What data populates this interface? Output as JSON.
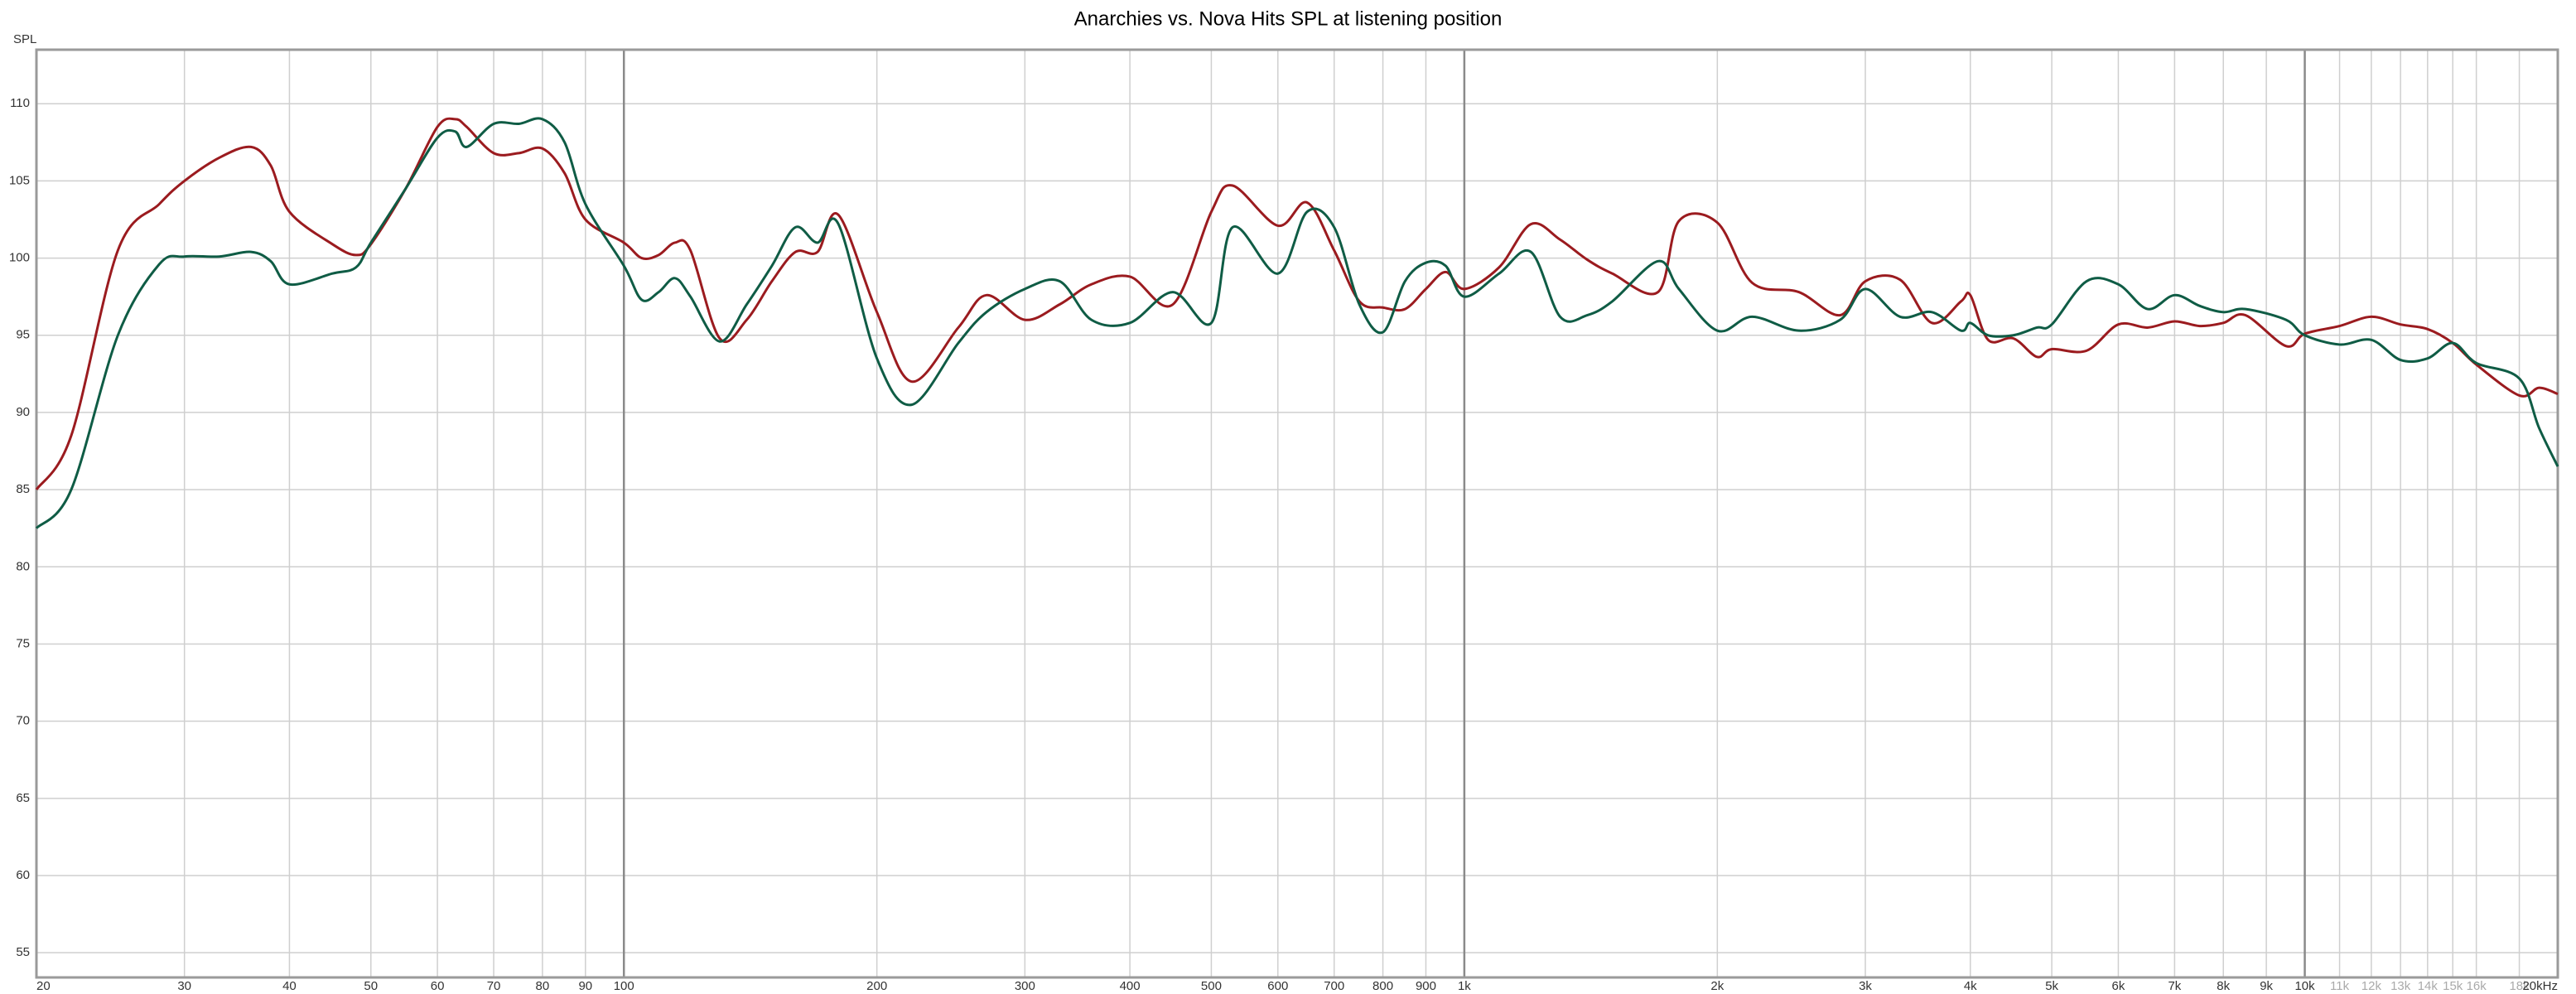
{
  "chart_data": {
    "type": "line",
    "title": "Anarchies vs. Nova Hits SPL at listening position",
    "y_label": "SPL",
    "xscale": "log",
    "grid": true,
    "xlim": [
      20,
      20000
    ],
    "ylim": [
      53.4,
      113.5
    ],
    "yticks": [
      55,
      60,
      65,
      70,
      75,
      80,
      85,
      90,
      95,
      100,
      105,
      110
    ],
    "xticks": [
      20,
      30,
      40,
      50,
      60,
      70,
      80,
      90,
      100,
      200,
      300,
      400,
      500,
      600,
      700,
      800,
      900,
      {
        "value": 1000,
        "label": "1k"
      },
      {
        "value": 2000,
        "label": "2k"
      },
      {
        "value": 3000,
        "label": "3k"
      },
      {
        "value": 4000,
        "label": "4k"
      },
      {
        "value": 5000,
        "label": "5k"
      },
      {
        "value": 6000,
        "label": "6k"
      },
      {
        "value": 7000,
        "label": "7k"
      },
      {
        "value": 8000,
        "label": "8k"
      },
      {
        "value": 9000,
        "label": "9k"
      },
      {
        "value": 10000,
        "label": "10k"
      },
      {
        "value": 11000,
        "label": "11k",
        "color": "#aaaaaa"
      },
      {
        "value": 12000,
        "label": "12k",
        "color": "#aaaaaa"
      },
      {
        "value": 13000,
        "label": "13k",
        "color": "#aaaaaa"
      },
      {
        "value": 14000,
        "label": "14k",
        "color": "#aaaaaa"
      },
      {
        "value": 15000,
        "label": "15k",
        "color": "#aaaaaa"
      },
      {
        "value": 16000,
        "label": "16k",
        "color": "#aaaaaa"
      },
      {
        "value": 18000,
        "label": "18k",
        "color": "#aaaaaa"
      },
      {
        "value": 20000,
        "label": "20kHz"
      }
    ],
    "x": [
      20,
      22,
      25,
      28,
      30,
      33,
      36,
      38,
      40,
      45,
      48,
      50,
      55,
      60,
      63,
      65,
      70,
      75,
      80,
      85,
      90,
      100,
      105,
      110,
      115,
      120,
      130,
      140,
      150,
      160,
      170,
      180,
      200,
      220,
      250,
      270,
      300,
      330,
      360,
      400,
      450,
      500,
      530,
      600,
      650,
      700,
      750,
      800,
      850,
      900,
      950,
      1000,
      1100,
      1200,
      1300,
      1400,
      1500,
      1700,
      1800,
      2000,
      2200,
      2500,
      2800,
      3000,
      3300,
      3600,
      3900,
      4000,
      4200,
      4500,
      4800,
      5000,
      5500,
      6000,
      6500,
      7000,
      7500,
      8000,
      8500,
      9500,
      10000,
      11000,
      12000,
      13000,
      14000,
      15000,
      16000,
      18000,
      19000,
      20000
    ],
    "series": [
      {
        "color": "#9b1b1f",
        "values": [
          85.0,
          88.5,
          100.5,
          103.5,
          105.0,
          106.5,
          107.2,
          106.0,
          103.0,
          100.9,
          100.2,
          100.9,
          104.5,
          108.5,
          109.0,
          108.5,
          106.8,
          106.8,
          107.1,
          105.5,
          102.5,
          101.0,
          100.0,
          100.2,
          101.0,
          100.5,
          94.8,
          96.0,
          98.5,
          100.4,
          100.4,
          102.8,
          96.5,
          92.0,
          95.5,
          97.6,
          96.0,
          97.0,
          98.3,
          98.8,
          97.0,
          103.0,
          104.7,
          102.1,
          103.6,
          100.5,
          97.2,
          96.8,
          96.7,
          98.0,
          99.1,
          98.0,
          99.4,
          102.2,
          101.2,
          99.9,
          99.0,
          97.8,
          102.4,
          102.3,
          98.4,
          97.8,
          96.3,
          98.5,
          98.6,
          95.8,
          97.2,
          97.6,
          94.7,
          94.8,
          93.6,
          94.1,
          94.0,
          95.7,
          95.5,
          95.9,
          95.6,
          95.8,
          96.3,
          94.3,
          95.1,
          95.6,
          96.2,
          95.7,
          95.4,
          94.5,
          93.1,
          91.1,
          91.6,
          91.2
        ]
      },
      {
        "color": "#0f5c45",
        "values": [
          82.5,
          85.0,
          95.0,
          99.6,
          100.1,
          100.1,
          100.4,
          99.8,
          98.3,
          99.0,
          99.4,
          101.0,
          104.5,
          107.8,
          108.2,
          107.2,
          108.7,
          108.7,
          109.0,
          107.5,
          103.5,
          99.5,
          97.3,
          97.8,
          98.7,
          97.5,
          94.6,
          97.0,
          99.5,
          102.0,
          101.0,
          102.2,
          93.5,
          90.5,
          94.5,
          96.5,
          98.0,
          98.5,
          96.0,
          95.8,
          97.8,
          95.8,
          102.0,
          99.0,
          103.0,
          102.0,
          97.0,
          95.2,
          98.5,
          99.7,
          99.5,
          97.5,
          99.0,
          100.4,
          96.2,
          96.3,
          97.2,
          99.8,
          98.0,
          95.3,
          96.2,
          95.3,
          96.0,
          98.0,
          96.2,
          96.5,
          95.3,
          95.8,
          95.0,
          95.0,
          95.5,
          95.7,
          98.5,
          98.3,
          96.7,
          97.6,
          96.9,
          96.5,
          96.7,
          96.0,
          95.0,
          94.4,
          94.7,
          93.4,
          93.5,
          94.5,
          93.2,
          92.2,
          89.0,
          86.5
        ]
      }
    ]
  }
}
